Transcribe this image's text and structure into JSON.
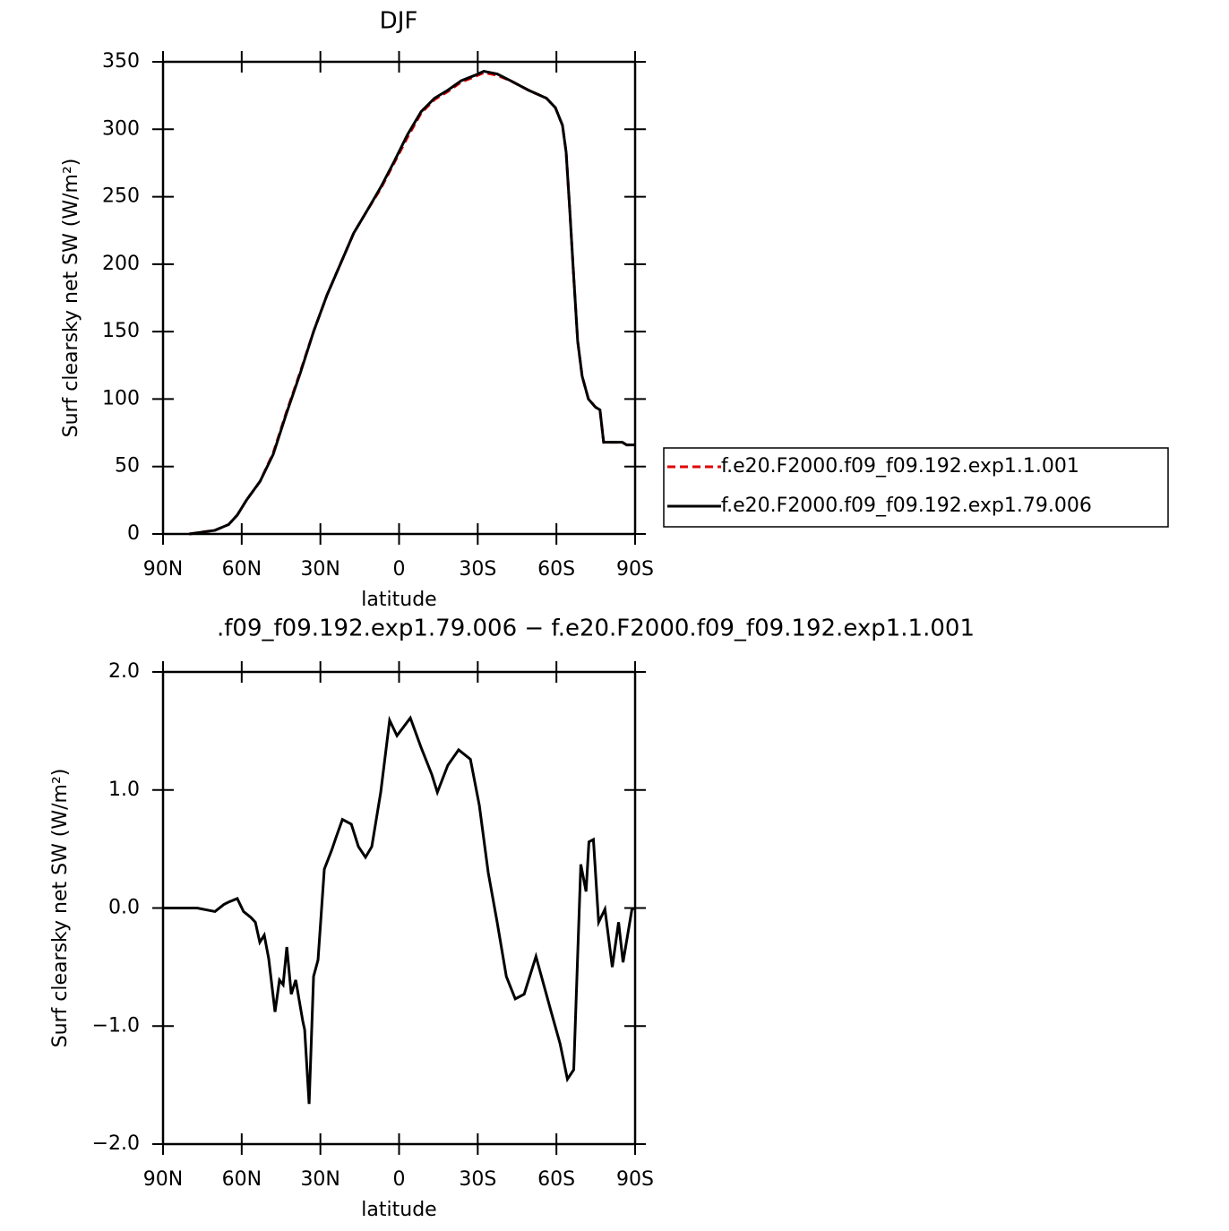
{
  "chart_data": [
    {
      "type": "line",
      "title": "DJF",
      "x_label": "latitude",
      "y_label": "Surf clearsky net SW (W/m²)",
      "x": [
        80,
        70.2,
        65,
        61.7,
        58.2,
        53,
        48,
        43,
        37.7,
        32.6,
        27.5,
        22.4,
        17.3,
        12.1,
        7,
        1.9,
        -3.2,
        -8.4,
        -13.5,
        -18.6,
        -23.7,
        -28.9,
        -32.3,
        -37.4,
        -42.5,
        -49.3,
        -56.2,
        -59.6,
        -62.3,
        -63.7,
        -65,
        -66.4,
        -68.1,
        -69.8,
        -72.2,
        -74.9,
        -76.6,
        -78,
        -81.7,
        -85.1,
        -86.8,
        -90
      ],
      "series": [
        {
          "name": "f.e20.F2000.f09_f09.192.exp1.1.001",
          "color": "#e00000",
          "dashed": true,
          "values": [
            0,
            2.7,
            7,
            14,
            25,
            39,
            60,
            90,
            120,
            150,
            177,
            200,
            223,
            240,
            256,
            275,
            294,
            312,
            322,
            328,
            335,
            339,
            342,
            340,
            336,
            329,
            323,
            316,
            303,
            283,
            243,
            197,
            143,
            117,
            100,
            94,
            92,
            68,
            68,
            68,
            66,
            66
          ]
        },
        {
          "name": "f.e20.F2000.f09_f09.192.exp1.79.006",
          "color": "#000000",
          "dashed": false,
          "values": [
            0,
            2.7,
            7,
            14,
            25,
            39,
            59,
            89,
            119,
            150,
            177,
            200,
            223,
            240,
            257,
            276,
            296,
            313,
            323,
            329,
            336,
            340,
            343,
            341,
            336,
            329,
            323,
            316,
            303,
            283,
            243,
            197,
            143,
            117,
            100,
            94,
            92,
            68,
            68,
            68,
            66,
            66
          ]
        }
      ],
      "xlim": [
        90,
        -90
      ],
      "xticks": [
        {
          "value": 90,
          "label": "90N"
        },
        {
          "value": 60,
          "label": "60N"
        },
        {
          "value": 30,
          "label": "30N"
        },
        0,
        {
          "value": -30,
          "label": "30S"
        },
        {
          "value": -60,
          "label": "60S"
        },
        {
          "value": -90,
          "label": "90S"
        }
      ],
      "ylim": [
        0,
        350
      ],
      "yticks": [
        0,
        50,
        100,
        150,
        200,
        250,
        300,
        350
      ],
      "legend": "right"
    },
    {
      "type": "line",
      "title": ".f09_f09.192.exp1.79.006 − f.e20.F2000.f09_f09.192.exp1.1.001",
      "x_label": "latitude",
      "y_label": "Surf clearsky net SW (W/m²)",
      "x": [
        90,
        77,
        70.2,
        66.8,
        65,
        61.7,
        59.3,
        56.5,
        54.8,
        53.1,
        51.4,
        49.7,
        47.3,
        45.6,
        44.2,
        42.8,
        41.1,
        39.4,
        36.7,
        36,
        34.3,
        32.6,
        30.9,
        28.5,
        25.7,
        24,
        21.6,
        18.2,
        15.5,
        12.8,
        10.4,
        7,
        3.6,
        0.8,
        -4.3,
        -8.4,
        -12.5,
        -14.6,
        -18.6,
        -22.7,
        -27.2,
        -30.6,
        -34,
        -37.4,
        -40.9,
        -44.3,
        -47.7,
        -52.2,
        -58,
        -61.4,
        -64.2,
        -66.6,
        -69.3,
        -71.3,
        -72.4,
        -74.1,
        -76.1,
        -78.5,
        -81.3,
        -83.7,
        -85.4,
        -88.8,
        -90
      ],
      "series": [
        {
          "color": "#000000",
          "dashed": false,
          "values": [
            0,
            0,
            -0.03,
            0.03,
            0.05,
            0.08,
            -0.03,
            -0.08,
            -0.12,
            -0.29,
            -0.23,
            -0.43,
            -0.88,
            -0.61,
            -0.65,
            -0.33,
            -0.73,
            -0.61,
            -0.96,
            -1.03,
            -1.66,
            -0.58,
            -0.44,
            0.33,
            0.49,
            0.6,
            0.75,
            0.71,
            0.52,
            0.43,
            0.52,
            0.98,
            1.59,
            1.46,
            1.61,
            1.36,
            1.13,
            0.98,
            1.21,
            1.34,
            1.26,
            0.87,
            0.3,
            -0.12,
            -0.58,
            -0.77,
            -0.73,
            -0.41,
            -0.88,
            -1.15,
            -1.45,
            -1.37,
            0.37,
            0.14,
            0.56,
            0.58,
            -0.12,
            -0.01,
            -0.5,
            -0.12,
            -0.46,
            -0.01,
            0
          ]
        }
      ],
      "xlim": [
        90,
        -90
      ],
      "xticks": [
        {
          "value": 90,
          "label": "90N"
        },
        {
          "value": 60,
          "label": "60N"
        },
        {
          "value": 30,
          "label": "30N"
        },
        0,
        {
          "value": -30,
          "label": "30S"
        },
        {
          "value": -60,
          "label": "60S"
        },
        {
          "value": -90,
          "label": "90S"
        }
      ],
      "ylim": [
        -2,
        2
      ],
      "yticks": [
        {
          "value": -2,
          "label": "−2.0"
        },
        {
          "value": -1,
          "label": "−1.0"
        },
        {
          "value": 0,
          "label": "0.0"
        },
        {
          "value": 1,
          "label": "1.0"
        },
        {
          "value": 2,
          "label": "2.0"
        }
      ]
    }
  ]
}
